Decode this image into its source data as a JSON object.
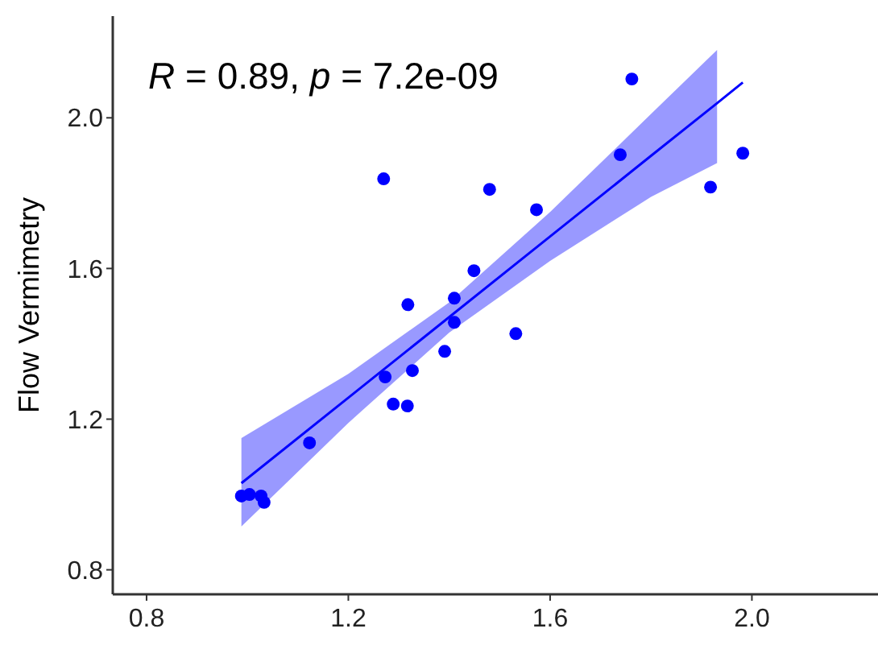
{
  "chart_data": {
    "type": "scatter",
    "ylabel": "Flow Vermimetry",
    "annotations": [
      "R = 0.89, p = 7.2e-09"
    ],
    "xlim": [
      0.733,
      2.25
    ],
    "ylim": [
      0.735,
      2.27
    ],
    "xticks": [
      0.8,
      1.2,
      1.6,
      {
        "value": 2,
        "label": "2.0"
      }
    ],
    "yticks": [
      0.8,
      1.2,
      1.6,
      {
        "value": 2,
        "label": "2.0"
      }
    ],
    "grid": false,
    "series": [
      {
        "type": "line",
        "color": "#0000ff",
        "x": [
          0.988,
          1.2,
          1.4,
          1.6,
          1.8,
          1.931,
          1.982
        ],
        "values": [
          1.03,
          1.257,
          1.471,
          1.685,
          1.899,
          2.039,
          2.094
        ],
        "lower": [
          0.915,
          1.19,
          1.43,
          1.62,
          1.79,
          1.88,
          null
        ],
        "upper": [
          1.15,
          1.32,
          1.51,
          1.75,
          2.01,
          2.18,
          null
        ]
      },
      {
        "color": "#0000ff",
        "marker": "circle",
        "x": [
          1.762,
          1.739,
          1.982,
          1.918,
          1.27,
          1.48,
          1.573,
          1.449,
          1.318,
          1.41,
          1.41,
          1.532,
          1.391,
          1.327,
          1.273,
          1.289,
          1.317,
          1.123,
          0.988,
          1.004,
          1.027,
          1.033
        ],
        "values": [
          2.103,
          1.902,
          1.906,
          1.816,
          1.838,
          1.81,
          1.756,
          1.594,
          1.504,
          1.521,
          1.457,
          1.427,
          1.38,
          1.329,
          1.312,
          1.24,
          1.235,
          1.137,
          0.996,
          1.0,
          0.996,
          0.979
        ]
      }
    ]
  }
}
